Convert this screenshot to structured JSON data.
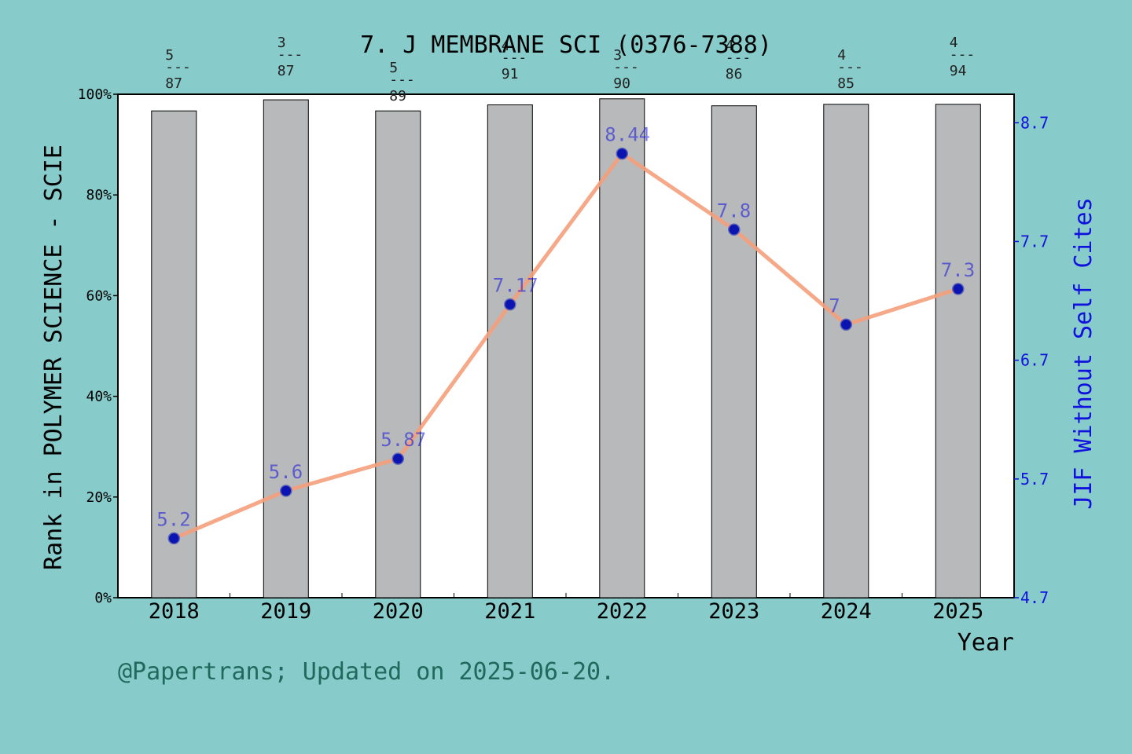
{
  "chart_data": {
    "type": "bar",
    "title": "7. J MEMBRANE SCI (0376-7388)",
    "xlabel": "Year",
    "ylabel_left": "Rank in POLYMER SCIENCE - SCIE",
    "ylabel_right": "JIF Without Self Cites",
    "footer": "@Papertrans; Updated on 2025-06-20.",
    "categories": [
      "2018",
      "2019",
      "2020",
      "2021",
      "2022",
      "2023",
      "2024",
      "2025"
    ],
    "left_axis": {
      "ylim": [
        0,
        100
      ],
      "ticks": [
        "0%",
        "20%",
        "40%",
        "60%",
        "80%",
        "100%"
      ]
    },
    "right_axis": {
      "ylim": [
        4.7,
        8.94
      ],
      "tick_values": [
        4.7,
        5.7,
        6.7,
        7.7,
        8.7
      ],
      "ticks": [
        "4.7",
        "5.7",
        "6.7",
        "7.7",
        "8.7"
      ]
    },
    "series": [
      {
        "kind": "bar",
        "axis": "left",
        "color": "#b8b9bb",
        "values": [
          96.7,
          98.9,
          96.7,
          97.9,
          99.1,
          97.7,
          98.0,
          98.0
        ]
      },
      {
        "kind": "line",
        "axis": "right",
        "color": "#f4a07b",
        "marker_color": "#0b13b0",
        "values": [
          5.2,
          5.6,
          5.87,
          7.17,
          8.44,
          7.8,
          7.0,
          7.3
        ],
        "value_labels": [
          "5.2",
          "5.6",
          "5.87",
          "7.17",
          "8.44",
          "7.8",
          "7",
          "7.3"
        ]
      }
    ],
    "rank_labels": [
      {
        "rank": "5",
        "sep": "---",
        "total": "87"
      },
      {
        "rank": "3",
        "sep": "---",
        "total": "87"
      },
      {
        "rank": "5",
        "sep": "---",
        "total": "89"
      },
      {
        "rank": "4",
        "sep": "---",
        "total": "91"
      },
      {
        "rank": "3",
        "sep": "---",
        "total": "90"
      },
      {
        "rank": "4",
        "sep": "---",
        "total": "86"
      },
      {
        "rank": "4",
        "sep": "---",
        "total": "85"
      },
      {
        "rank": "4",
        "sep": "---",
        "total": "94"
      }
    ],
    "grid": false,
    "colors": {
      "background": "#87cbca",
      "plot_bg": "#ffffff",
      "right_axis": "#1111dd",
      "footer": "#1f6a5c"
    }
  }
}
